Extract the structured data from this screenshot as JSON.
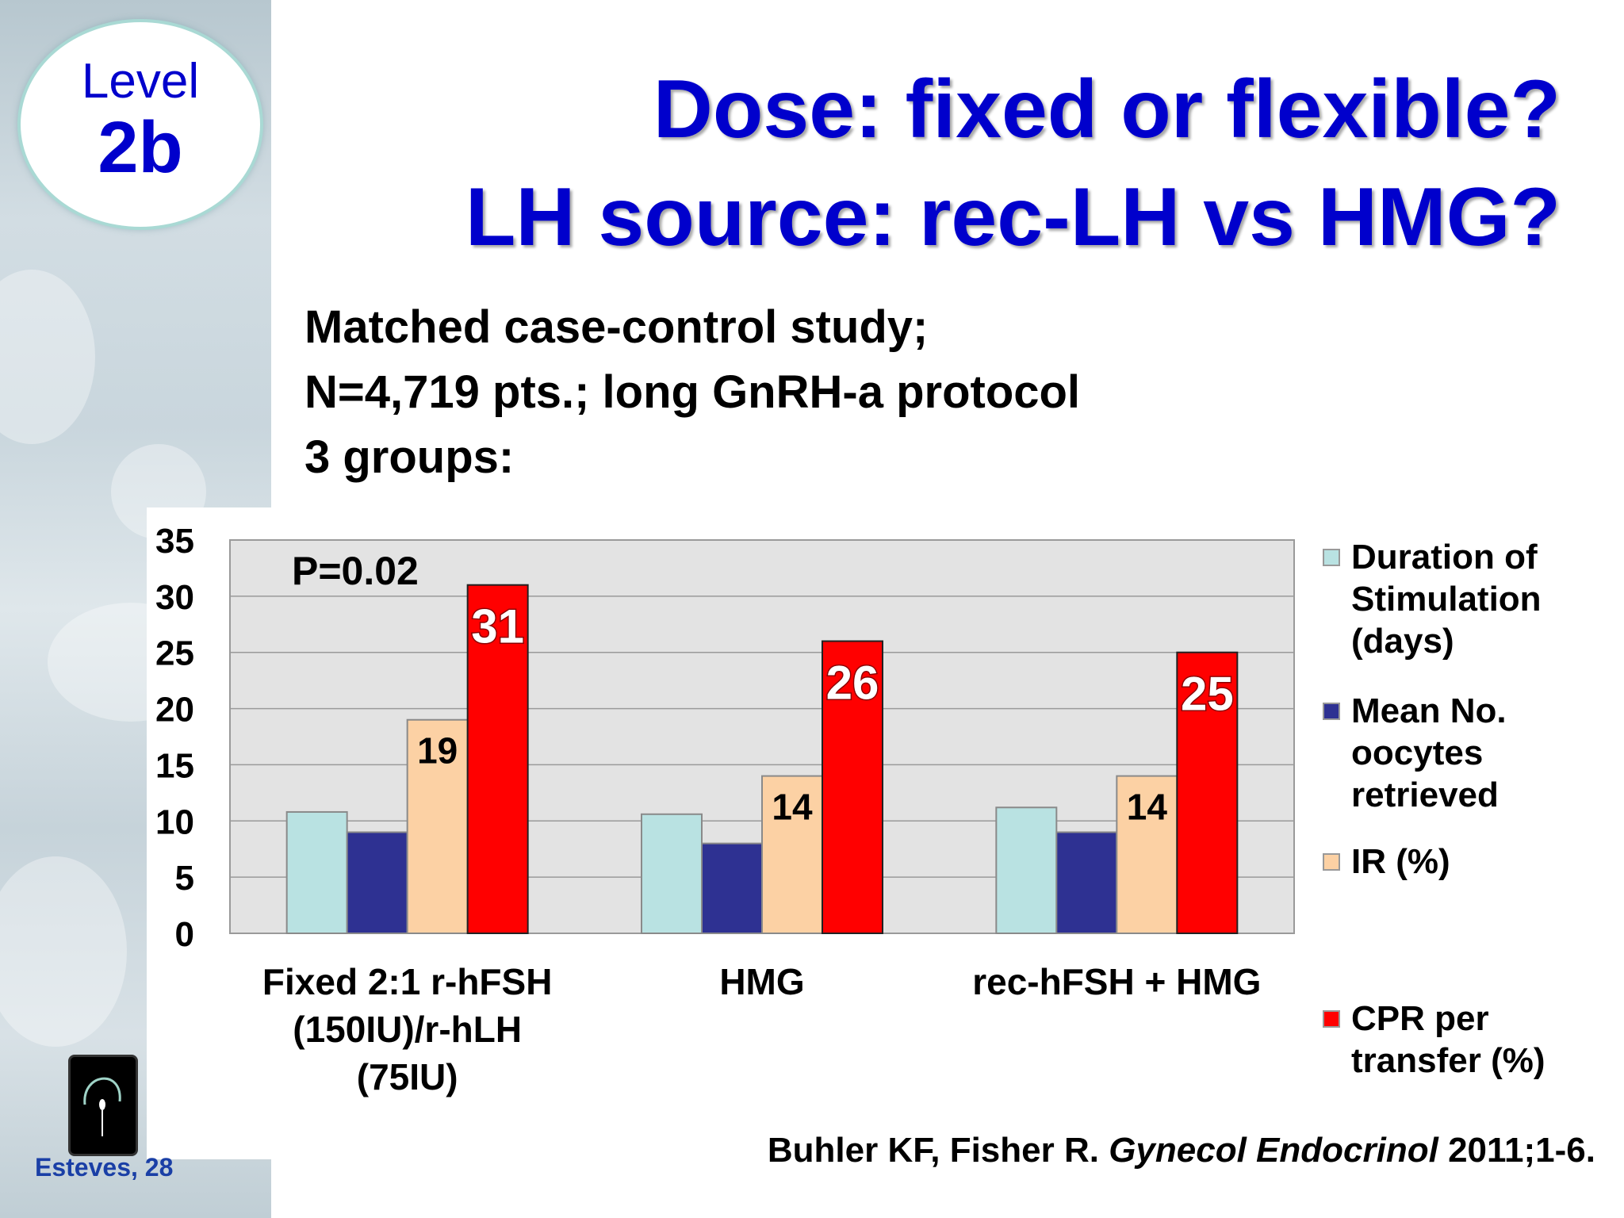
{
  "badge": {
    "level": "Level",
    "code": "2b"
  },
  "title": {
    "line1": "Dose: fixed or flexible?",
    "line2": "LH source: rec-LH vs HMG?"
  },
  "study": {
    "line1": "Matched case-control study;",
    "line2": "N=4,719 pts.; long GnRH-a protocol",
    "line3": "3 groups:"
  },
  "chart_data": {
    "type": "bar",
    "categories": [
      [
        "Fixed 2:1 r-hFSH",
        "(150IU)/r-hLH",
        "(75IU)"
      ],
      [
        "HMG"
      ],
      [
        "rec-hFSH + HMG"
      ]
    ],
    "series": [
      {
        "name": "Duration of Stimulation (days)",
        "values": [
          10.8,
          10.6,
          11.2
        ],
        "color": "#b9e2e2",
        "label": false
      },
      {
        "name": "Mean No. oocytes retrieved",
        "values": [
          9,
          8,
          9
        ],
        "color": "#2e3192",
        "label": false
      },
      {
        "name": "IR (%)",
        "values": [
          19,
          14,
          14
        ],
        "color": "#fcd1a4",
        "label": true
      },
      {
        "name": "CPR per transfer (%)",
        "values": [
          31,
          26,
          25
        ],
        "color": "#ff0000",
        "label": true
      }
    ],
    "ylim": [
      0,
      35
    ],
    "yticks": [
      "0",
      "5",
      "10",
      "15",
      "20",
      "25",
      "30",
      "35"
    ],
    "annotation": "P=0.02",
    "grid": true,
    "legend": "right"
  },
  "legend": [
    {
      "lines": [
        "Duration of",
        "Stimulation",
        "(days)"
      ],
      "color": "#b9e2e2"
    },
    {
      "lines": [
        "Mean No.",
        "oocytes",
        "retrieved"
      ],
      "color": "#2e3192"
    },
    {
      "lines": [
        "IR (%)"
      ],
      "color": "#fcd1a4"
    },
    {
      "lines": [
        "CPR per",
        "transfer (%)"
      ],
      "color": "#ff0000"
    }
  ],
  "footer": {
    "slide_number": "Esteves, 28"
  },
  "citation": {
    "authors": "Buhler KF, Fisher R.",
    "journal": "Gynecol Endocrinol",
    "details": "2011;1-6."
  }
}
